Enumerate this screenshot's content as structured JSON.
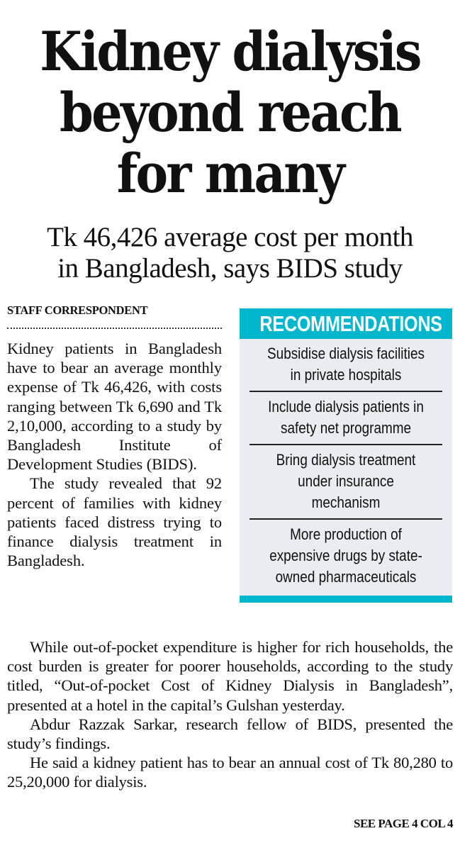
{
  "article": {
    "headline": [
      "Kidney dialysis",
      "beyond reach",
      "for many"
    ],
    "subheadline": [
      "Tk 46,426 average cost per month",
      "in Bangladesh, says BIDS study"
    ],
    "byline": "STAFF CORRESPONDENT",
    "column_paragraphs": [
      "Kidney patients in Bangladesh have to bear an average monthly expense of Tk 46,426, with costs ranging between Tk 6,690 and Tk 2,10,000, according to a study by Bangladesh Institute of Development Studies (BIDS).",
      "The study revealed that 92 percent of families with kidney patients faced distress trying to finance dialysis treatment in Bangladesh."
    ],
    "full_width_paragraphs": [
      "While out-of-pocket expenditure is higher for rich households, the cost burden is greater for poorer households, according to the study titled, “Out-of-pocket Cost of Kidney Dialysis in Bangladesh”, presented at a hotel in the capital’s Gulshan yesterday.",
      "Abdur Razzak Sarkar, research fellow of BIDS, presented the study’s findings.",
      "He said a kidney patient has to bear an annual cost of Tk 80,280 to 25,20,000 for dialysis."
    ],
    "jump_line": "SEE PAGE 4 COL 4"
  },
  "recommendations": {
    "title": "RECOMMENDATIONS",
    "accent_color": "#00b6cc",
    "background_color": "#e9edf1",
    "items": [
      "Subsidise dialysis facilities in private hospitals",
      "Include dialysis patients in safety net programme",
      "Bring dialysis treatment under insurance mechanism",
      "More production of expensive drugs by state-owned pharmaceuticals"
    ]
  }
}
